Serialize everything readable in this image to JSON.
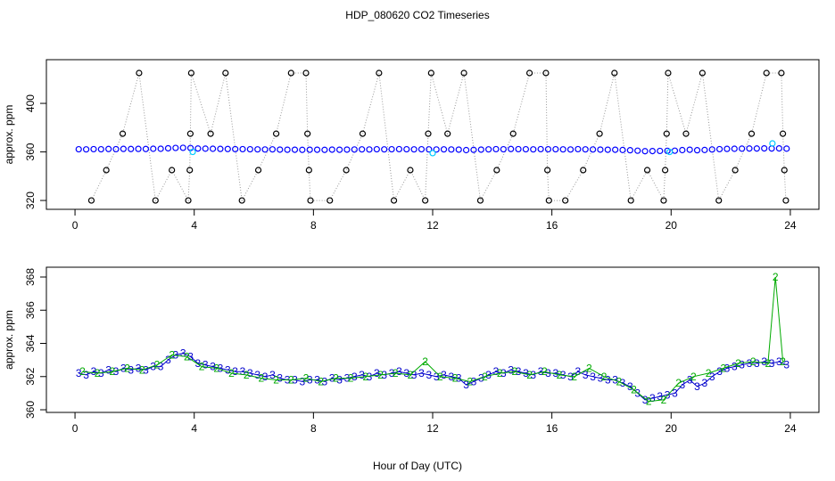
{
  "title": "HDP_080620  CO2 Timeseries",
  "x_label": "Hour of Day (UTC)",
  "chart_data": [
    {
      "type": "scatter",
      "y_label": "approx. ppm",
      "xlim": [
        -0.96,
        24.96
      ],
      "xticks": [
        0,
        4,
        8,
        12,
        16,
        20,
        24
      ],
      "ylim": [
        312.7,
        436
      ],
      "yticks": [
        320,
        360,
        400
      ],
      "series": [
        {
          "color": "#000000",
          "line_color": "#999999",
          "x": [
            0.55,
            1.05,
            1.6,
            2.15,
            2.7,
            3.25,
            3.8,
            3.85,
            3.87,
            3.9,
            4.55,
            5.05,
            5.6,
            6.15,
            6.75,
            7.25,
            7.75,
            7.8,
            7.85,
            7.9,
            8.55,
            9.1,
            9.65,
            10.2,
            10.7,
            11.25,
            11.75,
            11.85,
            11.95,
            12.5,
            13.05,
            13.6,
            14.15,
            14.7,
            15.25,
            15.8,
            15.85,
            15.9,
            16.45,
            17.05,
            17.6,
            18.1,
            18.65,
            19.2,
            19.75,
            19.8,
            19.85,
            19.9,
            20.5,
            21.05,
            21.6,
            22.15,
            22.7,
            23.2,
            23.7,
            23.75,
            23.8,
            23.85
          ],
          "values": [
            320,
            345,
            375,
            425,
            320,
            345,
            320,
            345,
            375,
            425,
            375,
            425,
            320,
            345,
            375,
            425,
            425,
            375,
            345,
            320,
            320,
            345,
            375,
            425,
            320,
            345,
            320,
            375,
            425,
            375,
            425,
            320,
            345,
            375,
            425,
            425,
            345,
            320,
            320,
            345,
            375,
            425,
            320,
            345,
            320,
            345,
            375,
            425,
            375,
            425,
            320,
            345,
            375,
            425,
            425,
            375,
            345,
            320
          ]
        },
        {
          "color": "#0000ff",
          "x": [
            0.125,
            0.375,
            0.625,
            0.875,
            1.125,
            1.375,
            1.625,
            1.875,
            2.125,
            2.375,
            2.625,
            2.875,
            3.125,
            3.375,
            3.625,
            3.875,
            4.125,
            4.375,
            4.625,
            4.875,
            5.125,
            5.375,
            5.625,
            5.875,
            6.125,
            6.375,
            6.625,
            6.875,
            7.125,
            7.375,
            7.625,
            7.875,
            8.125,
            8.375,
            8.625,
            8.875,
            9.125,
            9.375,
            9.625,
            9.875,
            10.125,
            10.375,
            10.625,
            10.875,
            11.125,
            11.375,
            11.625,
            11.875,
            12.125,
            12.375,
            12.625,
            12.875,
            13.125,
            13.375,
            13.625,
            13.875,
            14.125,
            14.375,
            14.625,
            14.875,
            15.125,
            15.375,
            15.625,
            15.875,
            16.125,
            16.375,
            16.625,
            16.875,
            17.125,
            17.375,
            17.625,
            17.875,
            18.125,
            18.375,
            18.625,
            18.875,
            19.125,
            19.375,
            19.625,
            19.875,
            20.125,
            20.375,
            20.625,
            20.875,
            21.125,
            21.375,
            21.625,
            21.875,
            22.125,
            22.375,
            22.625,
            22.875,
            23.125,
            23.375,
            23.625,
            23.875
          ],
          "values": [
            362.2,
            362.1,
            362.3,
            362.2,
            362.4,
            362.3,
            362.5,
            362.4,
            362.5,
            362.4,
            362.6,
            362.6,
            363.0,
            363.3,
            363.4,
            363.2,
            362.8,
            362.7,
            362.6,
            362.5,
            362.4,
            362.3,
            362.3,
            362.2,
            362.1,
            362.0,
            362.1,
            361.9,
            361.8,
            361.8,
            361.7,
            361.8,
            361.8,
            361.7,
            361.9,
            361.8,
            361.9,
            362.0,
            362.1,
            362.0,
            362.2,
            362.1,
            362.2,
            362.3,
            362.2,
            362.1,
            362.2,
            362.1,
            362.0,
            362.1,
            362.0,
            361.9,
            361.5,
            361.7,
            361.9,
            362.1,
            362.3,
            362.2,
            362.4,
            362.3,
            362.2,
            362.1,
            362.3,
            362.2,
            362.2,
            362.1,
            362.0,
            362.3,
            362.1,
            362.0,
            361.9,
            361.8,
            361.8,
            361.6,
            361.4,
            361.0,
            360.6,
            360.7,
            360.8,
            360.9,
            361.0,
            361.5,
            361.8,
            361.4,
            361.6,
            362.0,
            362.3,
            362.5,
            362.6,
            362.7,
            362.8,
            362.8,
            362.9,
            362.8,
            362.9,
            362.7
          ]
        },
        {
          "color": "#00ccff",
          "x": [
            3.95,
            12.0,
            19.95,
            23.4
          ],
          "values": [
            360,
            359,
            360,
            367
          ]
        }
      ]
    },
    {
      "type": "text-scatter",
      "y_label": "approx. ppm",
      "xlim": [
        -0.96,
        24.96
      ],
      "xticks": [
        0,
        4,
        8,
        12,
        16,
        20,
        24
      ],
      "ylim": [
        359.84,
        368.59
      ],
      "yticks": [
        360,
        362,
        364,
        366,
        368
      ],
      "series": [
        {
          "marker": "3",
          "color": "#0000cc",
          "x": [
            0.125,
            0.375,
            0.625,
            0.875,
            1.125,
            1.375,
            1.625,
            1.875,
            2.125,
            2.375,
            2.625,
            2.875,
            3.125,
            3.375,
            3.625,
            3.875,
            4.125,
            4.375,
            4.625,
            4.875,
            5.125,
            5.375,
            5.625,
            5.875,
            6.125,
            6.375,
            6.625,
            6.875,
            7.125,
            7.375,
            7.625,
            7.875,
            8.125,
            8.375,
            8.625,
            8.875,
            9.125,
            9.375,
            9.625,
            9.875,
            10.125,
            10.375,
            10.625,
            10.875,
            11.125,
            11.375,
            11.625,
            11.875,
            12.125,
            12.375,
            12.625,
            12.875,
            13.125,
            13.375,
            13.625,
            13.875,
            14.125,
            14.375,
            14.625,
            14.875,
            15.125,
            15.375,
            15.625,
            15.875,
            16.125,
            16.375,
            16.625,
            16.875,
            17.125,
            17.375,
            17.625,
            17.875,
            18.125,
            18.375,
            18.625,
            18.875,
            19.125,
            19.375,
            19.625,
            19.875,
            20.125,
            20.375,
            20.625,
            20.875,
            21.125,
            21.375,
            21.625,
            21.875,
            22.125,
            22.375,
            22.625,
            22.875,
            23.125,
            23.375,
            23.625,
            23.875
          ],
          "values": [
            362.2,
            362.1,
            362.3,
            362.2,
            362.4,
            362.3,
            362.5,
            362.4,
            362.5,
            362.4,
            362.6,
            362.6,
            363.0,
            363.3,
            363.4,
            363.2,
            362.8,
            362.7,
            362.6,
            362.5,
            362.4,
            362.3,
            362.3,
            362.2,
            362.1,
            362.0,
            362.1,
            361.9,
            361.8,
            361.8,
            361.7,
            361.8,
            361.8,
            361.7,
            361.9,
            361.8,
            361.9,
            362.0,
            362.1,
            362.0,
            362.2,
            362.1,
            362.2,
            362.3,
            362.2,
            362.1,
            362.2,
            362.1,
            362.0,
            362.1,
            362.0,
            361.9,
            361.5,
            361.7,
            361.9,
            362.1,
            362.3,
            362.2,
            362.4,
            362.3,
            362.2,
            362.1,
            362.3,
            362.2,
            362.2,
            362.1,
            362.0,
            362.3,
            362.1,
            362.0,
            361.9,
            361.8,
            361.8,
            361.6,
            361.4,
            361.0,
            360.6,
            360.7,
            360.8,
            360.9,
            361.0,
            361.5,
            361.8,
            361.4,
            361.6,
            362.0,
            362.3,
            362.5,
            362.6,
            362.7,
            362.8,
            362.8,
            362.9,
            362.8,
            362.9,
            362.7
          ]
        },
        {
          "marker": "2",
          "color": "#00aa00",
          "x": [
            0.25,
            0.75,
            1.25,
            1.75,
            2.25,
            2.75,
            3.25,
            3.75,
            4.25,
            4.75,
            5.25,
            5.75,
            6.25,
            6.75,
            7.25,
            7.75,
            8.25,
            8.75,
            9.25,
            9.75,
            10.25,
            10.75,
            11.25,
            11.75,
            12.25,
            12.75,
            13.25,
            13.75,
            14.25,
            14.75,
            15.25,
            15.75,
            16.25,
            16.75,
            17.25,
            17.75,
            18.25,
            18.75,
            19.25,
            19.75,
            20.25,
            20.75,
            21.25,
            21.75,
            22.25,
            22.75,
            23.25,
            23.5,
            23.75
          ],
          "values": [
            362.3,
            362.2,
            362.3,
            362.5,
            362.4,
            362.7,
            363.3,
            363.2,
            362.6,
            362.5,
            362.2,
            362.1,
            361.9,
            361.8,
            361.8,
            361.9,
            361.7,
            361.9,
            361.9,
            362.0,
            362.1,
            362.2,
            362.1,
            362.9,
            362.0,
            361.9,
            361.7,
            362.0,
            362.2,
            362.3,
            362.1,
            362.3,
            362.1,
            362.0,
            362.5,
            362.0,
            361.7,
            361.2,
            360.5,
            360.6,
            361.6,
            362.0,
            362.2,
            362.5,
            362.8,
            362.9,
            362.8,
            368,
            362.9
          ]
        }
      ]
    }
  ]
}
